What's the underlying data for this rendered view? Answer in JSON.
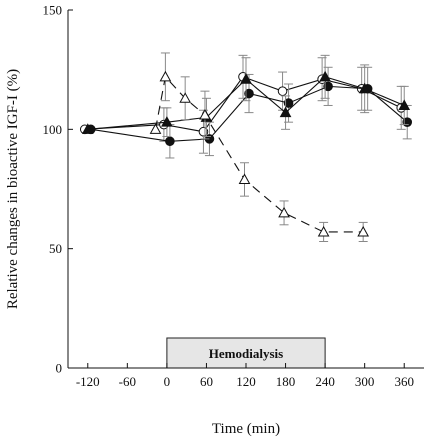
{
  "chart_data": {
    "type": "line",
    "title": "",
    "xlabel": "Time (min)",
    "ylabel": "Relative changes in bioactive IGF-I (%)",
    "xlim": [
      -150,
      390
    ],
    "ylim": [
      0,
      150
    ],
    "xticks": [
      -120,
      -60,
      0,
      60,
      120,
      180,
      240,
      300,
      360
    ],
    "yticks": [
      0,
      50,
      100,
      150
    ],
    "grid": false,
    "band": {
      "label": "Hemodialysis",
      "x_start": 0,
      "x_end": 240
    },
    "series": [
      {
        "marker": "open-circle",
        "line": "solid",
        "x": [
          -120,
          0,
          60,
          120,
          180,
          240,
          300,
          360
        ],
        "y": [
          100,
          102,
          99,
          122,
          116,
          121,
          117,
          109
        ],
        "err": [
          0,
          7,
          9,
          9,
          8,
          9,
          9,
          9
        ]
      },
      {
        "marker": "filled-circle",
        "line": "solid",
        "x": [
          -120,
          0,
          60,
          120,
          180,
          240,
          300,
          360
        ],
        "y": [
          100,
          95,
          96,
          115,
          111,
          118,
          117,
          103
        ],
        "err": [
          0,
          7,
          7,
          8,
          8,
          8,
          9,
          7
        ]
      },
      {
        "marker": "filled-triangle",
        "line": "solid",
        "x": [
          -120,
          0,
          60,
          120,
          180,
          240,
          300,
          360
        ],
        "y": [
          100,
          103,
          105,
          121,
          107,
          122,
          117,
          110
        ],
        "err": [
          0,
          6,
          8,
          9,
          7,
          9,
          10,
          8
        ]
      },
      {
        "marker": "open-triangle",
        "line": "dashed",
        "x": [
          -15,
          0,
          30,
          60,
          120,
          180,
          240,
          300
        ],
        "y": [
          100,
          122,
          113,
          106,
          79,
          65,
          57,
          57
        ],
        "err": [
          0,
          10,
          9,
          10,
          7,
          5,
          4,
          4
        ]
      }
    ]
  }
}
